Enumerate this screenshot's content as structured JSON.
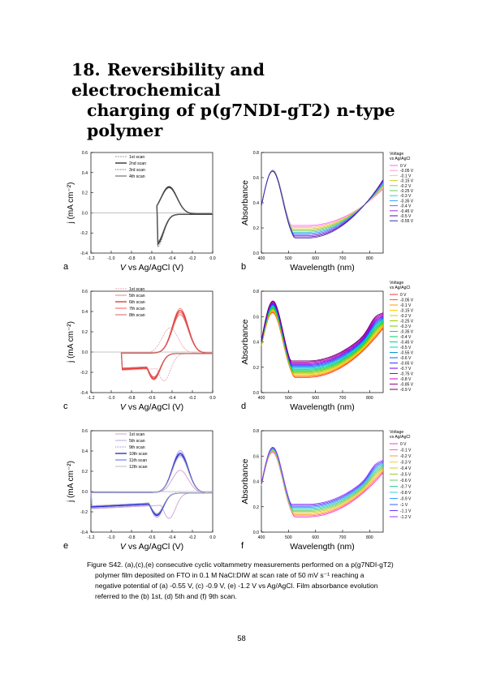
{
  "section": {
    "number": "18.",
    "title_line1": "Reversibility and electrochemical",
    "title_line2": "charging of p(g7NDI-gT2) n-type",
    "title_line3": "polymer"
  },
  "cv_axes": {
    "xlabel_prefix": "V",
    "xlabel_rest": "vs Ag/AgCl (V)",
    "ylabel": "j (mA cm⁻²)",
    "x_ticks": [
      "-1.2",
      "-1.0",
      "-0.8",
      "-0.6",
      "-0.4",
      "-0.2",
      "0.0"
    ],
    "y_ticks": [
      "-0.4",
      "-0.2",
      "0.0",
      "0.2",
      "0.4",
      "0.6"
    ]
  },
  "abs_axes": {
    "xlabel": "Wavelength (nm)",
    "ylabel": "Absorbance",
    "x_ticks": [
      "400",
      "500",
      "600",
      "700",
      "800"
    ],
    "y_ticks": [
      "0.0",
      "0.2",
      "0.4",
      "0.6",
      "0.8"
    ],
    "legend_title_1": "Voltage",
    "legend_title_2": "vs Ag/AgCl"
  },
  "chart_data": [
    {
      "type": "line",
      "panel": "a",
      "xlabel": "V vs Ag/AgCl (V)",
      "ylabel": "j (mA cm-2)",
      "xlim": [
        -1.2,
        0.0
      ],
      "ylim": [
        -0.4,
        0.6
      ],
      "series": [
        {
          "name": "1st scan"
        },
        {
          "name": "2nd scan"
        },
        {
          "name": "3rd scan"
        },
        {
          "name": "4th scan"
        }
      ],
      "legend": [
        "1st scan",
        "2nd scan",
        "3rd scan",
        "4th scan"
      ],
      "vertex_potential": -0.55,
      "peaks": {
        "cathodic": {
          "x": -0.55,
          "y": -0.33
        },
        "anodic": {
          "x": -0.43,
          "y": 0.27
        }
      }
    },
    {
      "type": "line",
      "panel": "b",
      "xlabel": "Wavelength (nm)",
      "ylabel": "Absorbance",
      "xlim": [
        400,
        850
      ],
      "ylim": [
        0.0,
        0.8
      ],
      "legend": [
        "0 V",
        "-0.05 V",
        "-0.1 V",
        "-0.15 V",
        "-0.2 V",
        "-0.25 V",
        "-0.3 V",
        "-0.35 V",
        "-0.4 V",
        "-0.45 V",
        "-0.5 V",
        "-0.55 V"
      ],
      "peak_x": 440,
      "peak_y": 0.64,
      "min_x": 570,
      "min_y_range": [
        0.12,
        0.22
      ],
      "end_y_range": [
        0.52,
        0.6
      ]
    },
    {
      "type": "line",
      "panel": "c",
      "xlabel": "V vs Ag/AgCl (V)",
      "ylabel": "j (mA cm-2)",
      "xlim": [
        -1.2,
        0.0
      ],
      "ylim": [
        -0.4,
        0.6
      ],
      "legend": [
        "1st scan",
        "5th scan",
        "6th scan",
        "7th scan",
        "8th scan"
      ],
      "vertex_potential": -0.9,
      "peaks": {
        "cathodic": {
          "x": -0.58,
          "y": -0.27
        },
        "anodic": {
          "x": -0.32,
          "y": 0.46
        }
      }
    },
    {
      "type": "line",
      "panel": "d",
      "xlabel": "Wavelength (nm)",
      "ylabel": "Absorbance",
      "xlim": [
        400,
        850
      ],
      "ylim": [
        0.0,
        0.8
      ],
      "legend": [
        "0 V",
        "-0.05 V",
        "-0.1 V",
        "-0.15 V",
        "-0.2 V",
        "-0.25 V",
        "-0.3 V",
        "-0.35 V",
        "-0.4 V",
        "-0.45 V",
        "-0.5 V",
        "-0.55 V",
        "-0.6 V",
        "-0.65 V",
        "-0.7 V",
        "-0.75 V",
        "-0.8 V",
        "-0.85 V",
        "-0.9 V"
      ],
      "peak_x": 440,
      "peak_y": 0.7,
      "min_x": 570,
      "min_y_range": [
        0.12,
        0.25
      ],
      "end_y_range": [
        0.55,
        0.7
      ]
    },
    {
      "type": "line",
      "panel": "e",
      "xlabel": "V vs Ag/AgCl (V)",
      "ylabel": "j (mA cm-2)",
      "xlim": [
        -1.2,
        0.0
      ],
      "ylim": [
        -0.4,
        0.6
      ],
      "legend": [
        "1st scan",
        "5th scan",
        "9th scan",
        "10th scan",
        "11th scan",
        "12th scan"
      ],
      "vertex_potential": -1.2,
      "peaks": {
        "cathodic": {
          "x": -0.55,
          "y": -0.25
        },
        "anodic": {
          "x": -0.32,
          "y": 0.38
        }
      }
    },
    {
      "type": "line",
      "panel": "f",
      "xlabel": "Wavelength (nm)",
      "ylabel": "Absorbance",
      "xlim": [
        400,
        850
      ],
      "ylim": [
        0.0,
        0.8
      ],
      "legend": [
        "0 V",
        "-0.1 V",
        "-0.2 V",
        "-0.3 V",
        "-0.4 V",
        "-0.5 V",
        "-0.6 V",
        "-0.7 V",
        "-0.8 V",
        "-0.9 V",
        "-1 V",
        "-1.1 V",
        "-1.2 V"
      ],
      "peak_x": 440,
      "peak_y": 0.64,
      "min_x": 570,
      "min_y_range": [
        0.12,
        0.22
      ],
      "end_y_range": [
        0.48,
        0.56
      ]
    }
  ],
  "panels": {
    "a": {
      "label": "a",
      "legend": [
        "1st scan",
        "2nd scan",
        "3rd scan",
        "4th scan"
      ]
    },
    "b": {
      "label": "b",
      "legend": [
        "0 V",
        "-0.05 V",
        "-0.1 V",
        "-0.15 V",
        "-0.2 V",
        "-0.25 V",
        "-0.3 V",
        "-0.35 V",
        "-0.4 V",
        "-0.45 V",
        "-0.5 V",
        "-0.55 V"
      ],
      "colors": [
        "#ff66ff",
        "#ff99cc",
        "#ffcc66",
        "#cccc33",
        "#99cc33",
        "#66cc66",
        "#33cccc",
        "#3399ff",
        "#6666ff",
        "#9933cc",
        "#6600cc",
        "#333399"
      ]
    },
    "c": {
      "label": "c",
      "legend": [
        "1st scan",
        "5th scan",
        "6th scan",
        "7th scan",
        "8th scan"
      ]
    },
    "d": {
      "label": "d",
      "legend": [
        "0 V",
        "-0.05 V",
        "-0.1 V",
        "-0.15 V",
        "-0.2 V",
        "-0.25 V",
        "-0.3 V",
        "-0.35 V",
        "-0.4 V",
        "-0.45 V",
        "-0.5 V",
        "-0.55 V",
        "-0.6 V",
        "-0.65 V",
        "-0.7 V",
        "-0.75 V",
        "-0.8 V",
        "-0.85 V",
        "-0.9 V"
      ],
      "colors": [
        "#ff3333",
        "#ff6600",
        "#ff9900",
        "#ffcc00",
        "#cccc00",
        "#99cc00",
        "#66cc00",
        "#33cc33",
        "#00cc66",
        "#00cc99",
        "#00cccc",
        "#0099cc",
        "#0066ff",
        "#3333ff",
        "#6600ff",
        "#9900cc",
        "#cc00cc",
        "#990099",
        "#660066"
      ]
    },
    "e": {
      "label": "e",
      "legend": [
        "1st scan",
        "5th scan",
        "9th scan",
        "10th scan",
        "11th scan",
        "12th scan"
      ]
    },
    "f": {
      "label": "f",
      "legend": [
        "0 V",
        "-0.1 V",
        "-0.2 V",
        "-0.3 V",
        "-0.4 V",
        "-0.5 V",
        "-0.6 V",
        "-0.7 V",
        "-0.8 V",
        "-0.9 V",
        "-1 V",
        "-1.1 V",
        "-1.2 V"
      ],
      "colors": [
        "#ff33cc",
        "#ff6699",
        "#ff9933",
        "#ffcc33",
        "#cccc33",
        "#99cc33",
        "#66cc66",
        "#33cc99",
        "#33cccc",
        "#3399ff",
        "#3366ff",
        "#6633ff",
        "#9933ff"
      ]
    }
  },
  "caption": {
    "line1": "Figure S42. (a),(c),(e) consecutive cyclic voltammetry measurements performed on a p(g7NDI-gT2)",
    "line2": "polymer film deposited on FTO in 0.1 M NaCl:DIW at scan rate of 50 mV s⁻¹ reaching a",
    "line3": "negative potential of (a) -0.55 V, (c) -0.9 V, (e) -1.2 V vs Ag/AgCl. Film absorbance evolution",
    "line4": "referred to the (b) 1st, (d) 5th and (f) 9th scan."
  },
  "page_number": "58"
}
